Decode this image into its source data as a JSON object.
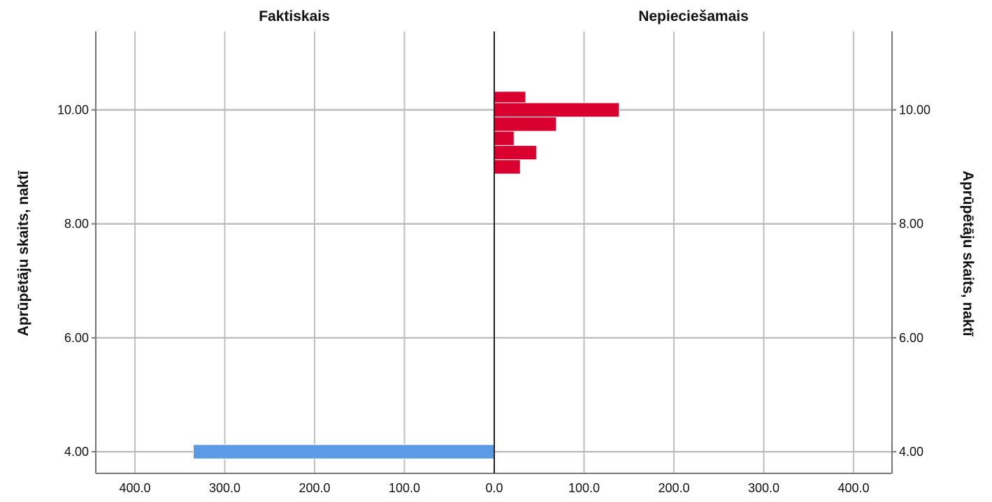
{
  "chart_data": {
    "type": "bar",
    "subtype": "population-pyramid",
    "panels": [
      {
        "title": "Faktiskais",
        "side": "left",
        "color": "#5b9be5"
      },
      {
        "title": "Nepieciešamais",
        "side": "right",
        "color": "#d9002f"
      }
    ],
    "series": [
      {
        "name": "Faktiskais",
        "side": "left",
        "bars": [
          {
            "y": 4.0,
            "value": 335
          }
        ]
      },
      {
        "name": "Nepieciešamais",
        "side": "right",
        "bars": [
          {
            "y": 10.2,
            "value": 35
          },
          {
            "y": 10.0,
            "value": 139
          },
          {
            "y": 9.75,
            "value": 69
          },
          {
            "y": 9.5,
            "value": 22
          },
          {
            "y": 9.25,
            "value": 47
          },
          {
            "y": 9.0,
            "value": 29
          }
        ]
      }
    ],
    "bar_height_units": 0.25,
    "ylabel_left": "Aprūpētāju skaits, naktī",
    "ylabel_right": "Aprūpētāju skaits, naktī",
    "yticks": [
      "4.00",
      "6.00",
      "8.00",
      "10.00"
    ],
    "ytick_values": [
      4,
      6,
      8,
      10
    ],
    "ylim": [
      3.65,
      11.35
    ],
    "xticks_left": [
      "400.0",
      "300.0",
      "200.0",
      "100.0",
      "0.0"
    ],
    "xticks_right": [
      "100.0",
      "200.0",
      "300.0",
      "400.0"
    ],
    "xtick_values": [
      100,
      200,
      300,
      400
    ],
    "xlim": [
      0,
      445
    ],
    "grid": true,
    "legend": "none"
  }
}
